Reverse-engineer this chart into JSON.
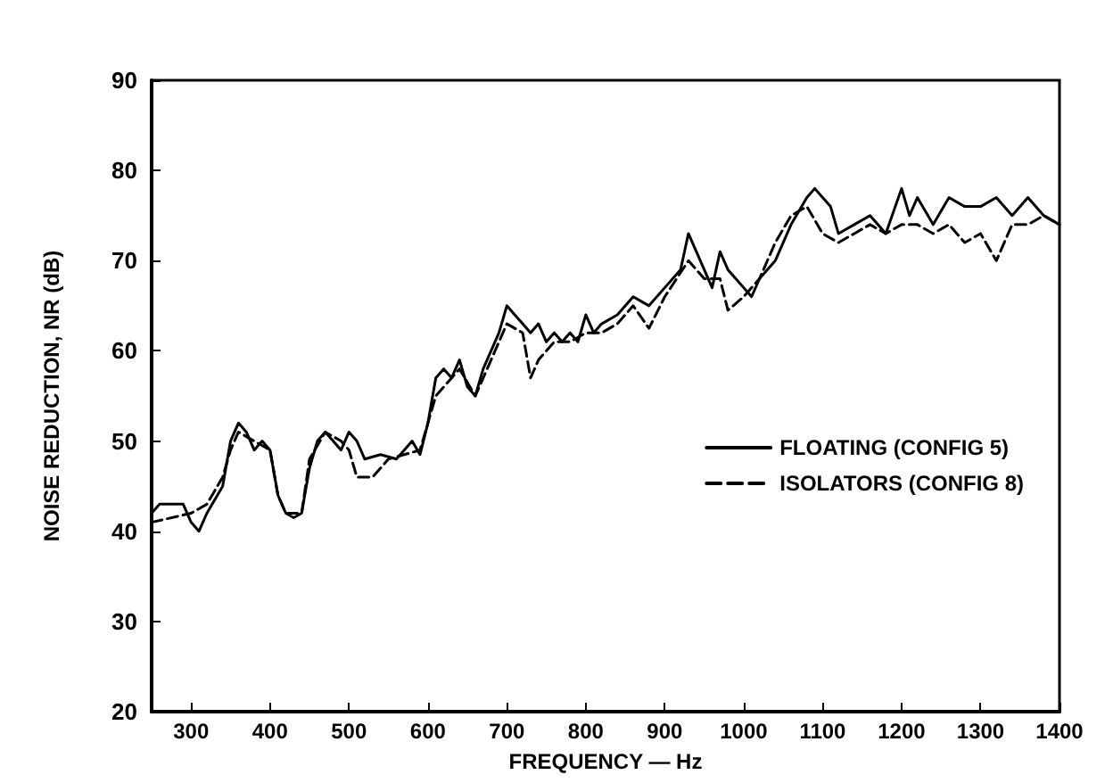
{
  "chart_data": {
    "type": "line",
    "xlabel": "FREQUENCY — Hz",
    "ylabel": "NOISE REDUCTION, NR (dB)",
    "xlim": [
      250,
      1400
    ],
    "ylim": [
      20,
      90
    ],
    "xticks": [
      300,
      400,
      500,
      600,
      700,
      800,
      900,
      1000,
      1100,
      1200,
      1300,
      1400
    ],
    "yticks": [
      20,
      30,
      40,
      50,
      60,
      70,
      80,
      90
    ],
    "grid": false,
    "legend": "right",
    "marker": "none",
    "series": [
      {
        "name": "FLOATING (CONFIG 5)",
        "color": "#000000",
        "line_style": "solid",
        "x": [
          250,
          260,
          280,
          290,
          300,
          310,
          320,
          340,
          350,
          360,
          370,
          380,
          390,
          400,
          410,
          420,
          430,
          440,
          450,
          460,
          470,
          480,
          490,
          500,
          510,
          520,
          540,
          560,
          570,
          580,
          590,
          600,
          610,
          620,
          630,
          640,
          650,
          660,
          670,
          680,
          690,
          700,
          710,
          720,
          730,
          740,
          750,
          760,
          770,
          780,
          790,
          800,
          810,
          820,
          840,
          860,
          880,
          900,
          920,
          930,
          940,
          950,
          960,
          970,
          980,
          990,
          1000,
          1010,
          1020,
          1040,
          1060,
          1080,
          1090,
          1100,
          1110,
          1120,
          1140,
          1160,
          1170,
          1180,
          1200,
          1210,
          1220,
          1240,
          1260,
          1280,
          1300,
          1320,
          1340,
          1360,
          1380,
          1400
        ],
        "values": [
          42,
          43,
          43,
          43,
          41,
          40,
          42,
          45,
          50,
          52,
          51,
          49,
          50,
          49,
          44,
          42,
          41.5,
          42,
          47,
          50,
          51,
          50,
          49,
          51,
          50,
          48,
          48.5,
          48,
          49,
          50,
          48.5,
          52,
          57,
          58,
          57,
          59,
          56,
          55,
          58,
          60,
          62,
          65,
          64,
          63,
          62,
          63,
          61,
          62,
          61,
          62,
          61,
          64,
          62,
          63,
          64,
          66,
          65,
          67,
          69,
          73,
          71,
          69,
          67,
          71,
          69,
          68,
          67,
          66,
          68,
          70,
          74,
          77,
          78,
          77,
          76,
          73,
          74,
          75,
          74,
          73,
          78,
          75,
          77,
          74,
          77,
          76,
          76,
          77,
          75,
          77,
          75,
          74
        ]
      },
      {
        "name": "ISOLATORS (CONFIG 8)",
        "color": "#000000",
        "line_style": "dashed",
        "x": [
          250,
          300,
          320,
          340,
          350,
          360,
          400,
          410,
          420,
          440,
          450,
          470,
          490,
          500,
          510,
          530,
          550,
          590,
          600,
          610,
          640,
          660,
          690,
          700,
          720,
          730,
          740,
          760,
          780,
          800,
          820,
          840,
          860,
          880,
          900,
          930,
          950,
          970,
          980,
          1000,
          1020,
          1040,
          1060,
          1080,
          1100,
          1120,
          1140,
          1160,
          1180,
          1200,
          1220,
          1240,
          1260,
          1280,
          1300,
          1320,
          1340,
          1360,
          1380,
          1400
        ],
        "values": [
          41,
          42,
          43,
          46,
          49,
          51,
          49,
          44,
          42,
          42,
          48,
          51,
          50,
          49,
          46,
          46,
          48,
          49,
          52,
          55,
          58,
          55,
          61,
          63,
          62,
          57,
          59,
          61,
          61,
          62,
          62,
          63,
          65,
          62.5,
          66,
          70,
          68,
          68,
          64.5,
          66,
          68,
          72,
          75,
          76,
          73,
          72,
          73,
          74,
          73,
          74,
          74,
          73,
          74,
          72,
          73,
          70,
          74,
          74,
          75,
          74
        ]
      }
    ]
  }
}
